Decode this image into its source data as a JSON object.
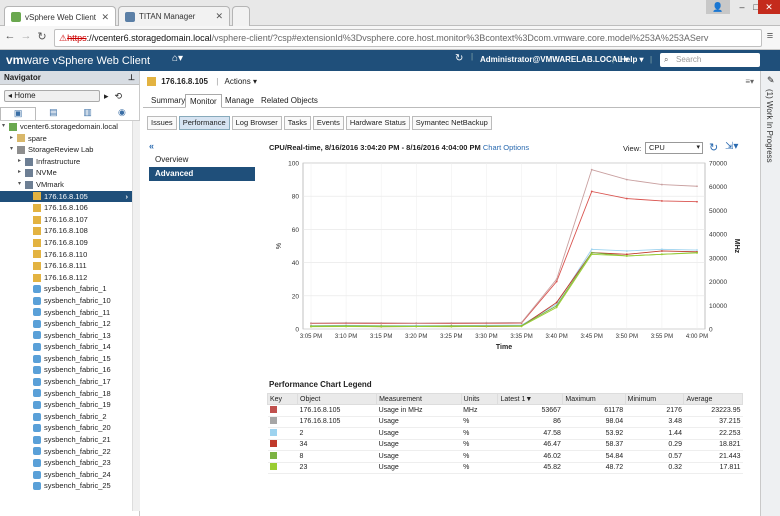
{
  "browser": {
    "tabs": [
      {
        "title": "vSphere Web Client",
        "active": true
      },
      {
        "title": "TITAN Manager",
        "active": false
      }
    ],
    "url": {
      "scheme": "https",
      "host": "://vcenter6.storagedomain.local",
      "path": "/vsphere-client/?csp#extensionId%3Dvsphere.core.host.monitor%3Bcontext%3Dcom.vmware.core.model%253A%253AServ"
    }
  },
  "header": {
    "logo_brand": "vm",
    "logo_ware": "ware",
    "product": " vSphere Web Client",
    "user": "Administrator@VMWARELAB.LOCAL ▾",
    "help": "Help ▾",
    "search_placeholder": "Search"
  },
  "navigator": {
    "title": "Navigator",
    "home": "◂ Home",
    "tree": [
      {
        "label": "vcenter6.storagedomain.local",
        "indent": 0,
        "icon": "vcenter-icon",
        "twisty": "▾"
      },
      {
        "label": "spare",
        "indent": 1,
        "icon": "folder-icon",
        "twisty": "▸"
      },
      {
        "label": "StorageReview Lab",
        "indent": 1,
        "icon": "datacenter-icon",
        "twisty": "▾"
      },
      {
        "label": "Infrastructure",
        "indent": 2,
        "icon": "cluster-icon",
        "twisty": "▸"
      },
      {
        "label": "NVMe",
        "indent": 2,
        "icon": "cluster-icon",
        "twisty": "▸"
      },
      {
        "label": "VMmark",
        "indent": 2,
        "icon": "cluster-icon",
        "twisty": "▾"
      },
      {
        "label": "176.16.8.105",
        "indent": 3,
        "icon": "host-icon",
        "twisty": "",
        "selected": true
      },
      {
        "label": "176.16.8.106",
        "indent": 3,
        "icon": "host-icon",
        "twisty": ""
      },
      {
        "label": "176.16.8.107",
        "indent": 3,
        "icon": "host-icon",
        "twisty": ""
      },
      {
        "label": "176.16.8.108",
        "indent": 3,
        "icon": "host-icon",
        "twisty": ""
      },
      {
        "label": "176.16.8.109",
        "indent": 3,
        "icon": "host-icon",
        "twisty": ""
      },
      {
        "label": "176.16.8.110",
        "indent": 3,
        "icon": "host-icon",
        "twisty": ""
      },
      {
        "label": "176.16.8.111",
        "indent": 3,
        "icon": "host-icon",
        "twisty": ""
      },
      {
        "label": "176.16.8.112",
        "indent": 3,
        "icon": "host-icon",
        "twisty": ""
      },
      {
        "label": "sysbench_fabric_1",
        "indent": 3,
        "icon": "vm-icon",
        "twisty": ""
      },
      {
        "label": "sysbench_fabric_10",
        "indent": 3,
        "icon": "vm-icon",
        "twisty": ""
      },
      {
        "label": "sysbench_fabric_11",
        "indent": 3,
        "icon": "vm-icon",
        "twisty": ""
      },
      {
        "label": "sysbench_fabric_12",
        "indent": 3,
        "icon": "vm-icon",
        "twisty": ""
      },
      {
        "label": "sysbench_fabric_13",
        "indent": 3,
        "icon": "vm-icon",
        "twisty": ""
      },
      {
        "label": "sysbench_fabric_14",
        "indent": 3,
        "icon": "vm-icon",
        "twisty": ""
      },
      {
        "label": "sysbench_fabric_15",
        "indent": 3,
        "icon": "vm-icon",
        "twisty": ""
      },
      {
        "label": "sysbench_fabric_16",
        "indent": 3,
        "icon": "vm-icon",
        "twisty": ""
      },
      {
        "label": "sysbench_fabric_17",
        "indent": 3,
        "icon": "vm-icon",
        "twisty": ""
      },
      {
        "label": "sysbench_fabric_18",
        "indent": 3,
        "icon": "vm-icon",
        "twisty": ""
      },
      {
        "label": "sysbench_fabric_19",
        "indent": 3,
        "icon": "vm-icon",
        "twisty": ""
      },
      {
        "label": "sysbench_fabric_2",
        "indent": 3,
        "icon": "vm-icon",
        "twisty": ""
      },
      {
        "label": "sysbench_fabric_20",
        "indent": 3,
        "icon": "vm-icon",
        "twisty": ""
      },
      {
        "label": "sysbench_fabric_21",
        "indent": 3,
        "icon": "vm-icon",
        "twisty": ""
      },
      {
        "label": "sysbench_fabric_22",
        "indent": 3,
        "icon": "vm-icon",
        "twisty": ""
      },
      {
        "label": "sysbench_fabric_23",
        "indent": 3,
        "icon": "vm-icon",
        "twisty": ""
      },
      {
        "label": "sysbench_fabric_24",
        "indent": 3,
        "icon": "vm-icon",
        "twisty": ""
      },
      {
        "label": "sysbench_fabric_25",
        "indent": 3,
        "icon": "vm-icon",
        "twisty": ""
      }
    ]
  },
  "object": {
    "name": "176.16.8.105",
    "actions": "Actions ▾",
    "tabs": [
      "Summary",
      "Monitor",
      "Manage",
      "Related Objects"
    ],
    "active_tab": "Monitor",
    "subtabs": [
      "Issues",
      "Performance",
      "Log Browser",
      "Tasks",
      "Events",
      "Hardware Status",
      "Symantec NetBackup"
    ],
    "active_subtab": "Performance"
  },
  "perf": {
    "collapse": "«",
    "menu": [
      "Overview",
      "Advanced"
    ],
    "active_menu": "Advanced",
    "chart_title": "CPU/Real-time, 8/16/2016 3:04:20 PM - 8/16/2016 4:04:00 PM",
    "chart_options": "Chart Options",
    "view_label": "View:",
    "view_value": "CPU",
    "legend_title": "Performance Chart Legend",
    "legend_headers": [
      "Key",
      "Object",
      "Measurement",
      "Units",
      "Latest",
      "Maximum",
      "Minimum",
      "Average"
    ],
    "legend_rows": [
      {
        "color": "#c0504d",
        "object": "176.16.8.105",
        "measurement": "Usage in MHz",
        "units": "MHz",
        "latest": "53667",
        "maximum": "61178",
        "minimum": "2176",
        "average": "23223.95"
      },
      {
        "color": "#a6a6a6",
        "object": "176.16.8.105",
        "measurement": "Usage",
        "units": "%",
        "latest": "86",
        "maximum": "98.04",
        "minimum": "3.48",
        "average": "37.215"
      },
      {
        "color": "#9dd3ef",
        "object": "2",
        "measurement": "Usage",
        "units": "%",
        "latest": "47.58",
        "maximum": "53.92",
        "minimum": "1.44",
        "average": "22.253"
      },
      {
        "color": "#c0392b",
        "object": "34",
        "measurement": "Usage",
        "units": "%",
        "latest": "46.47",
        "maximum": "58.37",
        "minimum": "0.29",
        "average": "18.821"
      },
      {
        "color": "#7cb342",
        "object": "8",
        "measurement": "Usage",
        "units": "%",
        "latest": "46.02",
        "maximum": "54.84",
        "minimum": "0.57",
        "average": "21.443"
      },
      {
        "color": "#9acd32",
        "object": "23",
        "measurement": "Usage",
        "units": "%",
        "latest": "45.82",
        "maximum": "48.72",
        "minimum": "0.32",
        "average": "17.811"
      }
    ]
  },
  "rail": {
    "label": "(1) Work In Progress"
  },
  "chart_data": {
    "type": "line",
    "x": [
      "3:05 PM",
      "3:10 PM",
      "3:15 PM",
      "3:20 PM",
      "3:25 PM",
      "3:30 PM",
      "3:35 PM",
      "3:40 PM",
      "3:45 PM",
      "3:50 PM",
      "3:55 PM",
      "4:00 PM"
    ],
    "xlabel": "Time",
    "ylabel_left": "%",
    "ylabel_right": "MHz",
    "ylim_left": [
      0,
      100
    ],
    "ylim_right": [
      0,
      70000
    ],
    "yticks_left": [
      0,
      20,
      40,
      60,
      80,
      100
    ],
    "yticks_right": [
      0,
      10000,
      20000,
      30000,
      40000,
      50000,
      60000,
      70000
    ],
    "grid": true,
    "series": [
      {
        "name": "176.16.8.105 Usage in MHz",
        "axis": "right",
        "color": "#d9534f",
        "values": [
          2300,
          2400,
          2300,
          2350,
          2300,
          2400,
          2500,
          20000,
          58000,
          55000,
          54000,
          53667
        ]
      },
      {
        "name": "176.16.8.105 Usage",
        "axis": "left",
        "color": "#c9a0a0",
        "values": [
          3.6,
          3.8,
          3.7,
          3.6,
          3.7,
          3.8,
          4,
          30,
          96,
          90,
          87,
          86
        ]
      },
      {
        "name": "2 Usage",
        "axis": "left",
        "color": "#9dd3ef",
        "values": [
          2,
          2.2,
          2,
          2.1,
          2,
          2.2,
          2.3,
          15,
          48,
          47,
          48,
          47.58
        ]
      },
      {
        "name": "34 Usage",
        "axis": "left",
        "color": "#c0392b",
        "values": [
          1.5,
          1.6,
          1.4,
          1.5,
          1.6,
          1.5,
          1.7,
          16,
          46,
          45,
          47,
          46.47
        ]
      },
      {
        "name": "8 Usage",
        "axis": "left",
        "color": "#7cb342",
        "values": [
          1.8,
          1.9,
          1.8,
          1.7,
          1.9,
          1.8,
          2,
          14,
          46,
          44,
          45,
          46.02
        ]
      },
      {
        "name": "23 Usage",
        "axis": "left",
        "color": "#9acd32",
        "values": [
          1.4,
          1.5,
          1.4,
          1.5,
          1.4,
          1.6,
          1.6,
          13,
          45,
          44,
          45,
          45.82
        ]
      }
    ]
  }
}
